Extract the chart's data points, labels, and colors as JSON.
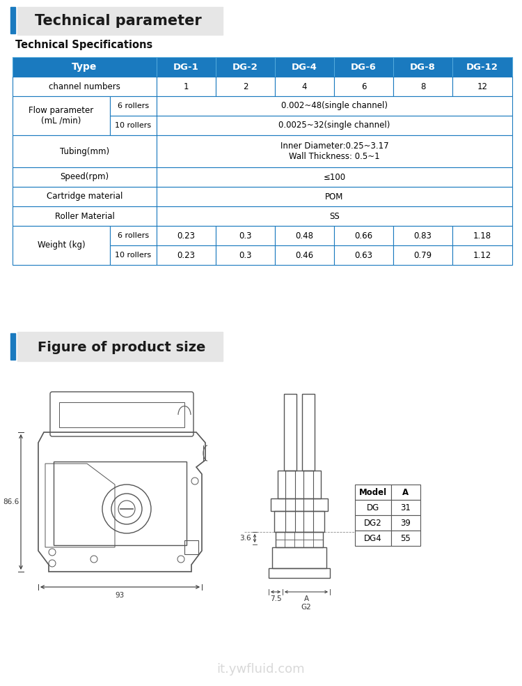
{
  "bg_color": "#ffffff",
  "section1_title": "Technical parameter",
  "section2_title": "Figure of product size",
  "sub_title": "Technical Specifications",
  "header_bg": "#1a7abf",
  "header_text_color": "#ffffff",
  "table_border_color": "#1a7abf",
  "header_row": [
    "Type",
    "DG-1",
    "DG-2",
    "DG-4",
    "DG-6",
    "DG-8",
    "DG-12"
  ],
  "ch_vals": [
    "1",
    "2",
    "4",
    "6",
    "8",
    "12"
  ],
  "flow_6r": "0.002~48(single channel)",
  "flow_10r": "0.0025~32(single channel)",
  "tubing": "Inner Diameter:0.25~3.17\nWall Thickness: 0.5~1",
  "speed": "≤100",
  "cartridge": "POM",
  "roller_mat": "SS",
  "w6": [
    "0.23",
    "0.3",
    "0.48",
    "0.66",
    "0.83",
    "1.18"
  ],
  "w10": [
    "0.23",
    "0.3",
    "0.46",
    "0.63",
    "0.79",
    "1.12"
  ],
  "dim_table_headers": [
    "Model",
    "A"
  ],
  "dim_table_rows": [
    [
      "DG",
      "31"
    ],
    [
      "DG2",
      "39"
    ],
    [
      "DG4",
      "55"
    ]
  ],
  "watermark": "it.ywfluid.com",
  "dim_86_6": "86.6",
  "dim_93": "93",
  "dim_3_6": "3.6",
  "dim_7_5": "7.5",
  "dim_A": "A",
  "dim_G2": "G2",
  "line_color": "#555555",
  "dim_color": "#333333"
}
